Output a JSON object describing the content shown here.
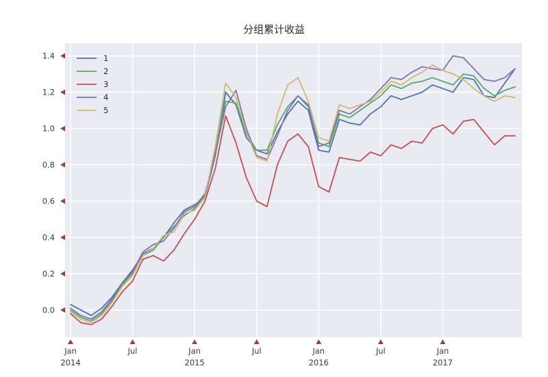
{
  "title": "分组累计收益",
  "chart_data": {
    "type": "line",
    "title": "分组累计收益",
    "xlabel": "",
    "ylabel": "",
    "legend_position": "upper-left",
    "grid": true,
    "plot_bg": "#eaeaf2",
    "grid_color": "#ffffff",
    "tick_marker_color": "#9e3e3e",
    "ylim": [
      -0.15,
      1.47
    ],
    "yticks": [
      0.0,
      0.2,
      0.4,
      0.6,
      0.8,
      1.0,
      1.2,
      1.4
    ],
    "x_months": [
      "2014-01",
      "2014-02",
      "2014-03",
      "2014-04",
      "2014-05",
      "2014-06",
      "2014-07",
      "2014-08",
      "2014-09",
      "2014-10",
      "2014-11",
      "2014-12",
      "2015-01",
      "2015-02",
      "2015-03",
      "2015-04",
      "2015-05",
      "2015-06",
      "2015-07",
      "2015-08",
      "2015-09",
      "2015-10",
      "2015-11",
      "2015-12",
      "2016-01",
      "2016-02",
      "2016-03",
      "2016-04",
      "2016-05",
      "2016-06",
      "2016-07",
      "2016-08",
      "2016-09",
      "2016-10",
      "2016-11",
      "2016-12",
      "2017-01",
      "2017-02",
      "2017-03",
      "2017-04",
      "2017-05",
      "2017-06",
      "2017-07",
      "2017-08"
    ],
    "xticks": [
      {
        "index": 0,
        "label": "Jan",
        "sublabel": "2014"
      },
      {
        "index": 6,
        "label": "Jul",
        "sublabel": ""
      },
      {
        "index": 12,
        "label": "Jan",
        "sublabel": "2015"
      },
      {
        "index": 18,
        "label": "Jul",
        "sublabel": ""
      },
      {
        "index": 24,
        "label": "Jan",
        "sublabel": "2016"
      },
      {
        "index": 30,
        "label": "Jul",
        "sublabel": ""
      },
      {
        "index": 36,
        "label": "Jan",
        "sublabel": "2017"
      }
    ],
    "series": [
      {
        "name": "1",
        "color": "#4c72b0",
        "values": [
          0.03,
          0.0,
          -0.03,
          0.01,
          0.07,
          0.15,
          0.22,
          0.31,
          0.34,
          0.4,
          0.48,
          0.55,
          0.58,
          0.62,
          0.85,
          1.2,
          1.13,
          0.95,
          0.88,
          0.86,
          0.98,
          1.08,
          1.15,
          1.1,
          0.88,
          0.87,
          1.05,
          1.03,
          1.02,
          1.08,
          1.12,
          1.18,
          1.16,
          1.18,
          1.2,
          1.24,
          1.22,
          1.2,
          1.28,
          1.27,
          1.18,
          1.17,
          1.25,
          1.33
        ]
      },
      {
        "name": "2",
        "color": "#55a868",
        "values": [
          0.0,
          -0.04,
          -0.06,
          -0.02,
          0.05,
          0.14,
          0.2,
          0.3,
          0.33,
          0.4,
          0.46,
          0.52,
          0.56,
          0.63,
          0.88,
          1.15,
          1.14,
          0.97,
          0.88,
          0.88,
          1.02,
          1.12,
          1.18,
          1.12,
          0.92,
          0.9,
          1.08,
          1.06,
          1.1,
          1.14,
          1.18,
          1.24,
          1.22,
          1.25,
          1.26,
          1.28,
          1.26,
          1.24,
          1.3,
          1.29,
          1.22,
          1.18,
          1.21,
          1.23
        ]
      },
      {
        "name": "3",
        "color": "#c44e52",
        "values": [
          -0.02,
          -0.07,
          -0.08,
          -0.05,
          0.02,
          0.1,
          0.16,
          0.28,
          0.3,
          0.27,
          0.33,
          0.42,
          0.5,
          0.6,
          0.78,
          1.07,
          0.92,
          0.73,
          0.6,
          0.57,
          0.8,
          0.93,
          0.97,
          0.9,
          0.68,
          0.65,
          0.84,
          0.83,
          0.82,
          0.87,
          0.85,
          0.91,
          0.89,
          0.93,
          0.92,
          1.0,
          1.02,
          0.97,
          1.04,
          1.05,
          0.98,
          0.91,
          0.96,
          0.96
        ]
      },
      {
        "name": "4",
        "color": "#8172b2",
        "values": [
          0.01,
          -0.03,
          -0.05,
          -0.01,
          0.06,
          0.15,
          0.21,
          0.32,
          0.36,
          0.38,
          0.45,
          0.54,
          0.57,
          0.64,
          0.86,
          1.12,
          1.21,
          1.0,
          0.85,
          0.83,
          0.96,
          1.1,
          1.18,
          1.13,
          0.9,
          0.92,
          1.1,
          1.08,
          1.12,
          1.16,
          1.22,
          1.28,
          1.27,
          1.31,
          1.34,
          1.33,
          1.32,
          1.4,
          1.39,
          1.33,
          1.27,
          1.26,
          1.28,
          1.33
        ]
      },
      {
        "name": "5",
        "color": "#ccb974",
        "values": [
          -0.01,
          -0.05,
          -0.07,
          -0.03,
          0.04,
          0.13,
          0.19,
          0.3,
          0.34,
          0.41,
          0.43,
          0.53,
          0.55,
          0.62,
          0.9,
          1.25,
          1.17,
          0.98,
          0.84,
          0.82,
          1.08,
          1.24,
          1.28,
          1.15,
          0.95,
          0.93,
          1.13,
          1.11,
          1.13,
          1.15,
          1.2,
          1.26,
          1.24,
          1.28,
          1.31,
          1.35,
          1.32,
          1.3,
          1.27,
          1.22,
          1.18,
          1.15,
          1.18,
          1.17
        ]
      }
    ]
  }
}
